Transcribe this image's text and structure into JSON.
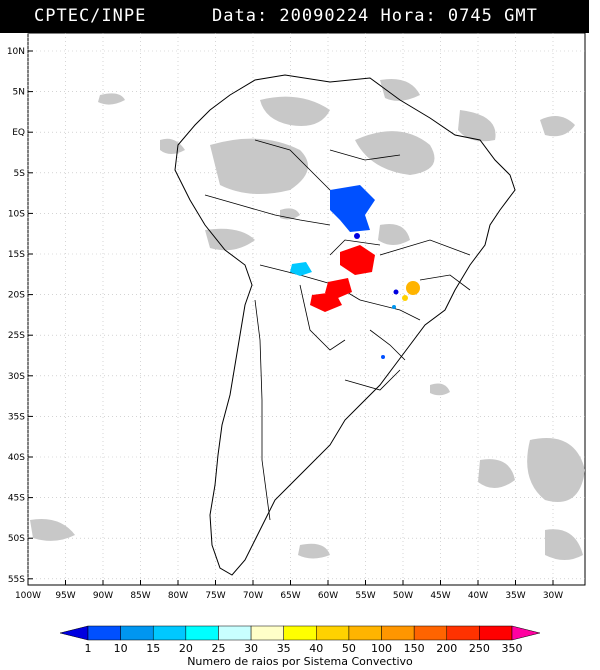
{
  "header": {
    "product": "CPTEC/INPE",
    "datetime": "Data: 20090224 Hora: 0745 GMT"
  },
  "map": {
    "lat_labels": [
      "10N",
      "5N",
      "EQ",
      "5S",
      "10S",
      "15S",
      "20S",
      "25S",
      "30S",
      "35S",
      "40S",
      "45S",
      "50S",
      "55S"
    ],
    "lon_labels": [
      "100W",
      "95W",
      "90W",
      "85W",
      "80W",
      "75W",
      "70W",
      "65W",
      "60W",
      "55W",
      "50W",
      "45W",
      "40W",
      "35W",
      "30W"
    ],
    "cloud_color": "#c8c8c8",
    "land_outline_color": "#000000"
  },
  "legend": {
    "title": "Numero de raios por Sistema Convectivo",
    "labels": [
      "1",
      "10",
      "15",
      "20",
      "25",
      "30",
      "35",
      "40",
      "50",
      "100",
      "150",
      "200",
      "250",
      "350"
    ],
    "colors": [
      "#0000e0",
      "#0050ff",
      "#0096f0",
      "#00c8ff",
      "#00ffff",
      "#c8ffff",
      "#ffffc8",
      "#ffff00",
      "#ffd200",
      "#ffb400",
      "#ff9600",
      "#ff6400",
      "#ff3200",
      "#ff0000",
      "#ff00a0"
    ]
  }
}
